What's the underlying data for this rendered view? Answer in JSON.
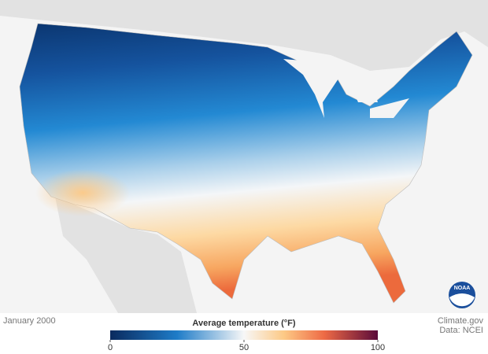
{
  "logo": "NOAA",
  "footer": {
    "date": "January 2000",
    "credit": "Climate.gov",
    "source": "Data: NCEI"
  },
  "legend": {
    "title": "Average temperature (°F)",
    "lim": [
      0,
      100
    ],
    "ticks": [
      0,
      50,
      100
    ]
  }
}
